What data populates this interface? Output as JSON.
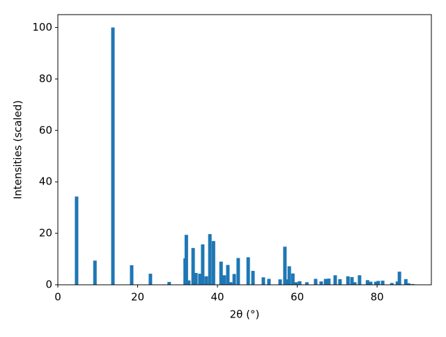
{
  "chart_data": {
    "type": "bar",
    "x_label": "2θ (°)",
    "y_label": "Intensities (scaled)",
    "x": [
      4.7,
      9.3,
      13.8,
      18.5,
      23.2,
      27.9,
      31.9,
      32.2,
      32.8,
      33.9,
      34.6,
      35.6,
      36.3,
      37.2,
      38.1,
      39.0,
      40.9,
      41.7,
      42.6,
      43.3,
      44.2,
      45.2,
      47.7,
      48.9,
      51.5,
      52.9,
      55.7,
      56.9,
      57.5,
      58.0,
      58.9,
      59.7,
      60.6,
      62.4,
      64.6,
      66.0,
      67.1,
      67.9,
      69.5,
      70.7,
      72.7,
      73.7,
      74.4,
      75.6,
      77.6,
      78.4,
      79.7,
      80.3,
      81.4,
      83.7,
      85.1,
      85.6,
      87.2,
      87.9,
      88.9
    ],
    "values": [
      34.3,
      9.4,
      100,
      7.6,
      4.3,
      1.1,
      10.3,
      19.4,
      1.7,
      14.3,
      4.6,
      4.3,
      15.7,
      3.3,
      19.7,
      17.0,
      9.0,
      3.7,
      7.7,
      1.0,
      4.2,
      10.4,
      10.7,
      5.4,
      2.9,
      2.3,
      2.1,
      14.8,
      2.1,
      7.2,
      4.4,
      1.0,
      1.4,
      1.0,
      2.3,
      1.3,
      2.3,
      2.4,
      3.7,
      2.2,
      3.3,
      3.0,
      1.0,
      3.7,
      1.8,
      1.2,
      1.2,
      1.5,
      1.6,
      0.7,
      1.3,
      5.1,
      2.2,
      0.6,
      0.3
    ],
    "color": "#1f77b4",
    "xlim": [
      0,
      93.6
    ],
    "xticks": [
      0,
      20,
      40,
      60,
      80
    ],
    "ylim": [
      0,
      105
    ],
    "yticks": [
      0,
      20,
      40,
      60,
      80,
      100
    ]
  }
}
